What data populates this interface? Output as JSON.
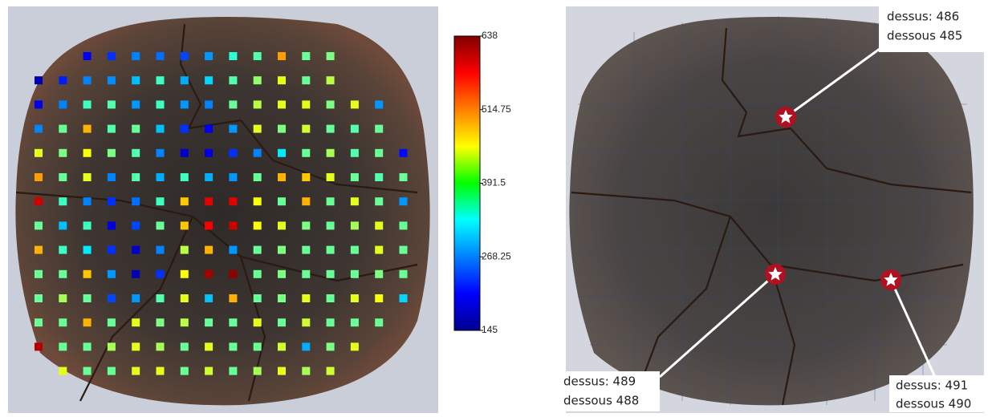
{
  "chart_data": {
    "type": "heatmap",
    "values": [
      [
        null,
        null,
        200,
        230,
        270,
        260,
        240,
        280,
        350,
        370,
        500,
        380,
        390,
        null,
        null,
        null
      ],
      [
        170,
        220,
        270,
        275,
        300,
        360,
        290,
        310,
        370,
        400,
        440,
        380,
        420,
        null,
        null,
        null
      ],
      [
        200,
        270,
        360,
        370,
        280,
        360,
        280,
        270,
        380,
        420,
        440,
        440,
        390,
        440,
        280,
        null
      ],
      [
        270,
        380,
        490,
        370,
        380,
        300,
        230,
        200,
        280,
        440,
        390,
        430,
        380,
        370,
        380,
        null
      ],
      [
        440,
        390,
        450,
        390,
        370,
        270,
        180,
        190,
        230,
        270,
        320,
        380,
        410,
        370,
        380,
        210
      ],
      [
        500,
        380,
        440,
        270,
        370,
        290,
        360,
        290,
        280,
        380,
        490,
        480,
        440,
        380,
        370,
        380
      ],
      [
        600,
        360,
        270,
        230,
        260,
        360,
        480,
        590,
        590,
        450,
        380,
        490,
        380,
        440,
        380,
        280
      ],
      [
        380,
        300,
        360,
        190,
        240,
        380,
        480,
        580,
        600,
        450,
        440,
        390,
        380,
        410,
        440,
        380
      ],
      [
        490,
        360,
        320,
        230,
        180,
        270,
        420,
        490,
        280,
        380,
        390,
        380,
        380,
        380,
        440,
        380
      ],
      [
        380,
        380,
        480,
        280,
        170,
        230,
        450,
        620,
        630,
        380,
        390,
        380,
        380,
        380,
        390,
        380
      ],
      [
        380,
        410,
        380,
        240,
        280,
        370,
        440,
        300,
        490,
        380,
        390,
        440,
        380,
        440,
        450,
        310
      ],
      [
        380,
        380,
        490,
        380,
        440,
        390,
        420,
        380,
        380,
        440,
        380,
        430,
        380,
        380,
        380,
        null
      ],
      [
        610,
        380,
        380,
        410,
        440,
        410,
        380,
        440,
        380,
        380,
        430,
        290,
        390,
        440,
        null,
        null
      ],
      [
        null,
        440,
        380,
        380,
        440,
        440,
        380,
        430,
        380,
        410,
        440,
        410,
        430,
        null,
        null,
        null
      ]
    ],
    "zlim": [
      145,
      638
    ],
    "colorbar_ticks": [
      145,
      268.25,
      391.5,
      514.75,
      638
    ],
    "annotations": [
      {
        "lines": [
          "dessus: 486",
          "dessous 485"
        ]
      },
      {
        "lines": [
          "dessus: 489",
          "dessous 488"
        ]
      },
      {
        "lines": [
          "dessus: 491",
          "dessous 490"
        ]
      }
    ]
  }
}
